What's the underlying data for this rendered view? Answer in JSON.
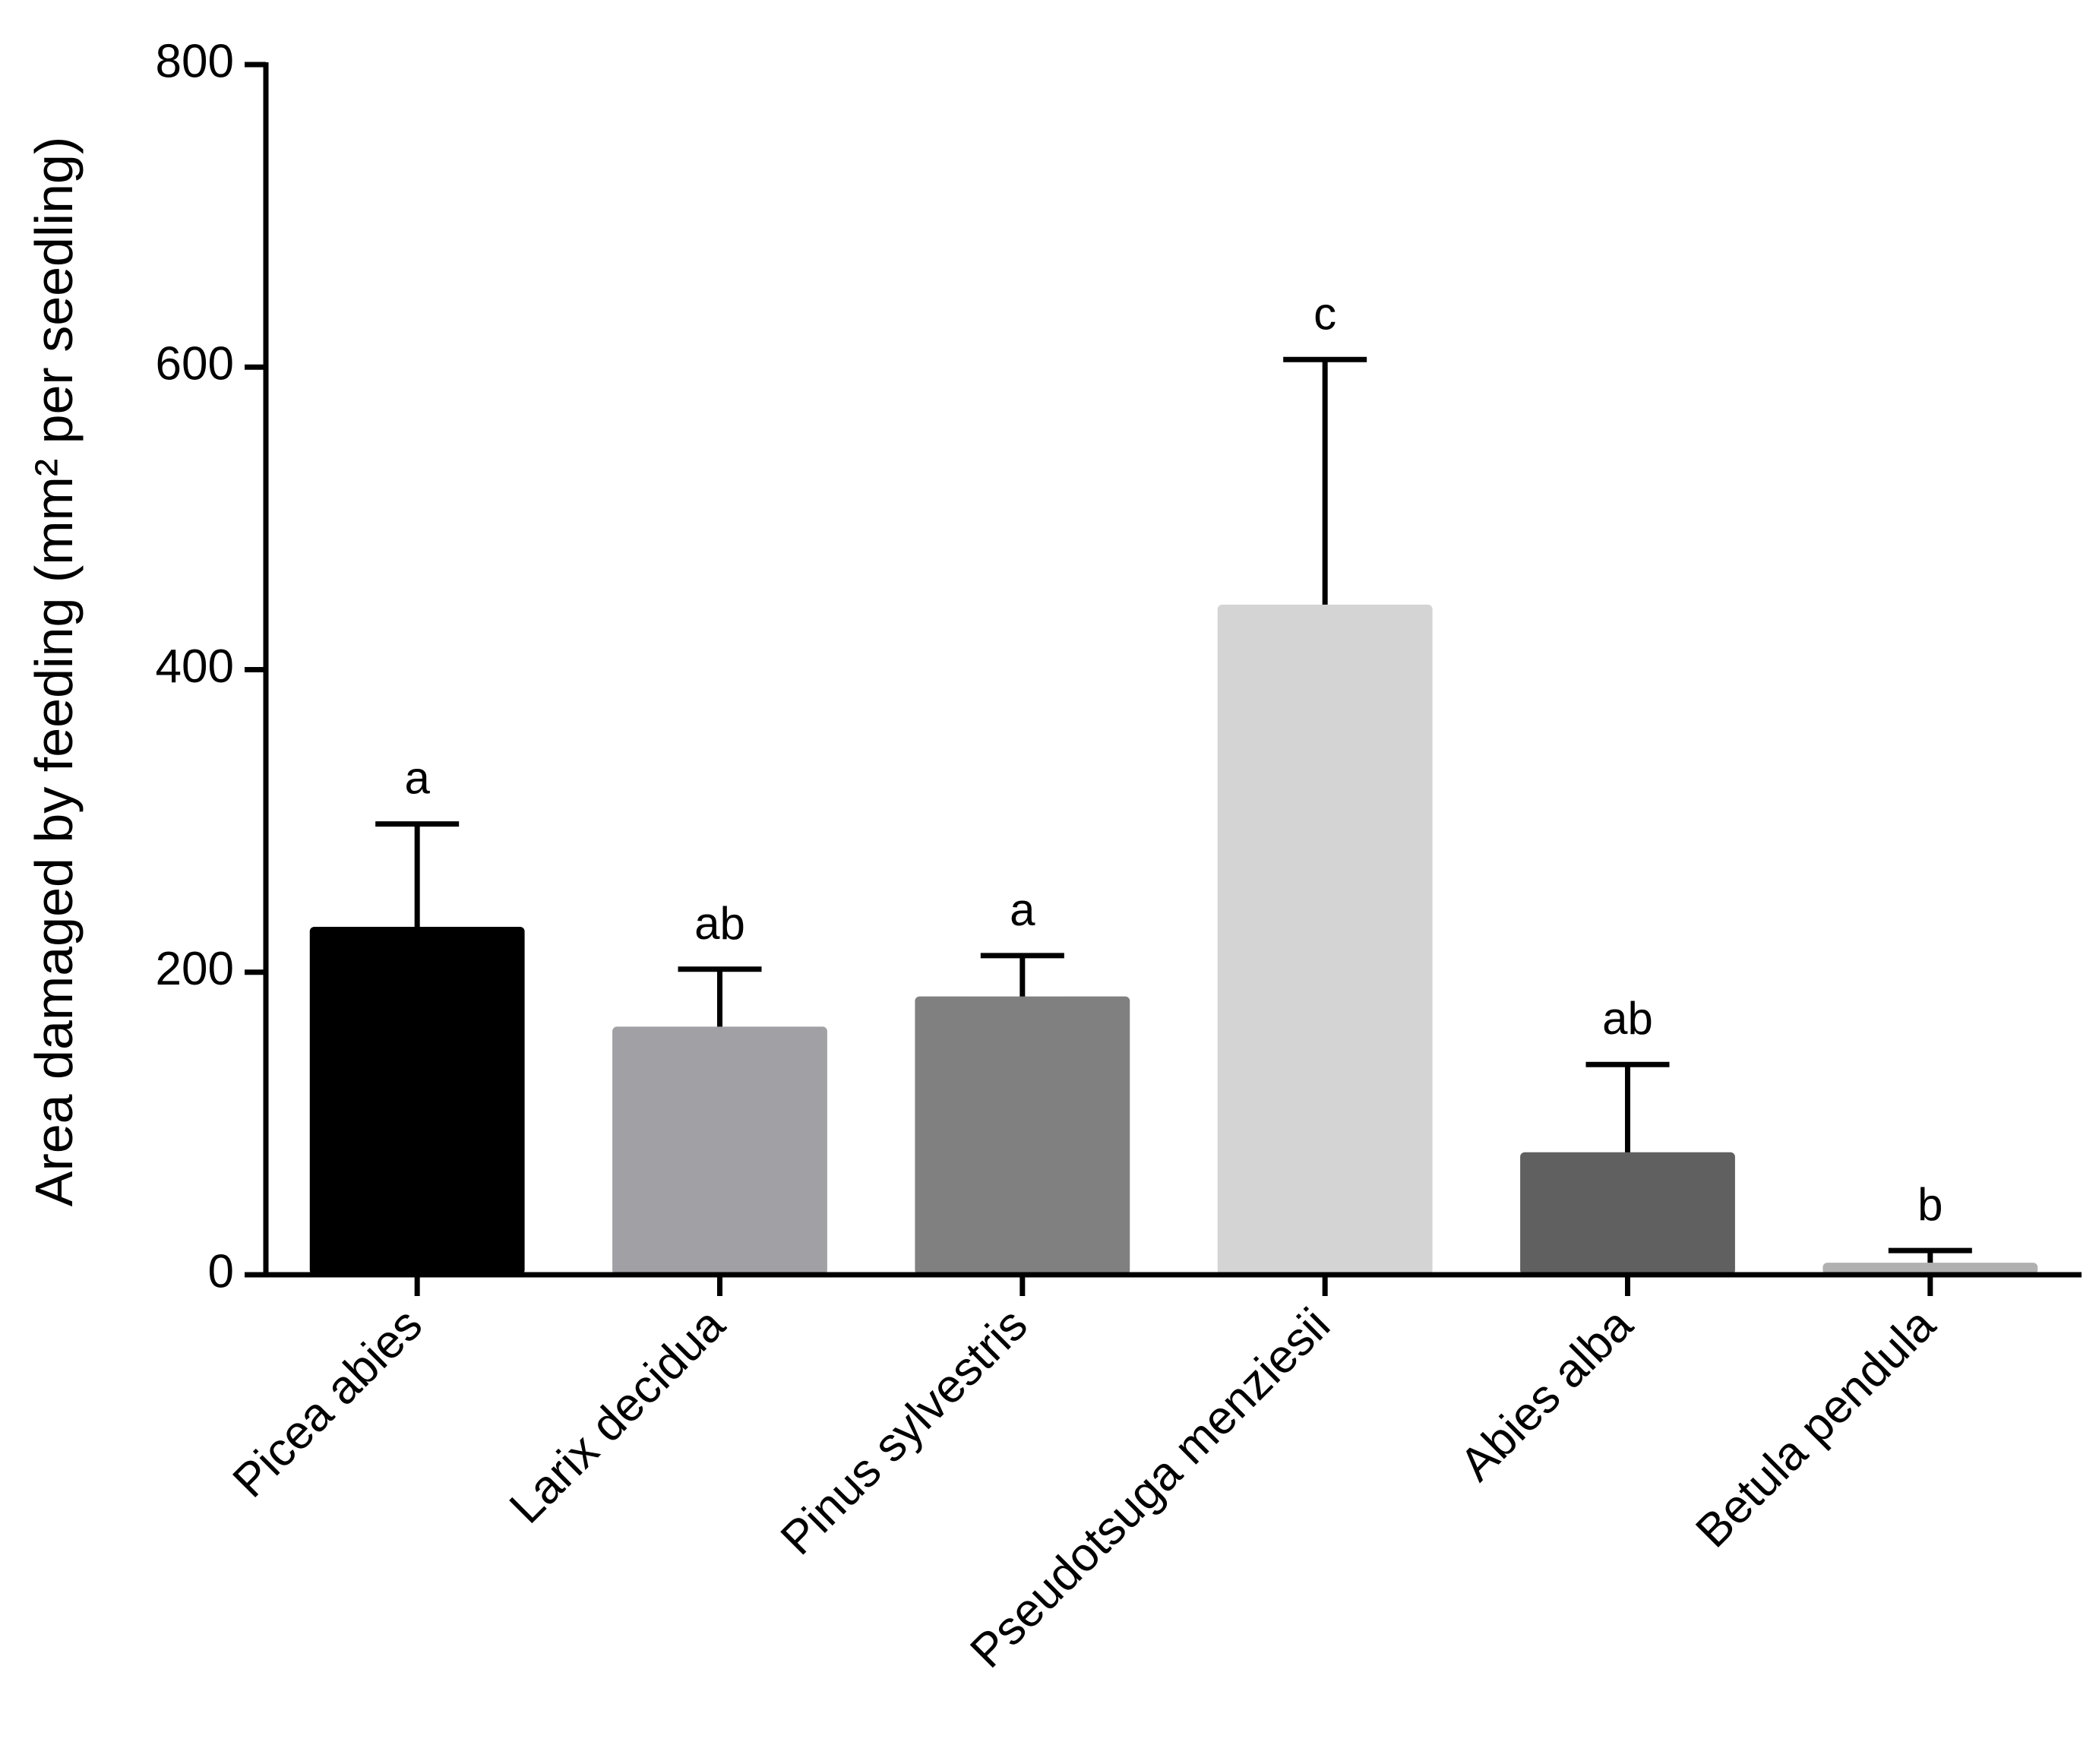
{
  "chart_data": {
    "type": "bar",
    "y_label": "Area damaged by feeding (mm² per seedling)",
    "categories": [
      "Picea abies",
      "Larix decidua",
      "Pinus sylvestris",
      "Pseudotsuga menziesii",
      "Abies alba",
      "Betula pendula"
    ],
    "values": [
      230,
      164,
      184,
      443,
      81,
      8
    ],
    "errors": [
      68,
      38,
      27,
      162,
      58,
      8
    ],
    "annotations": [
      "a",
      "ab",
      "a",
      "c",
      "ab",
      "b"
    ],
    "colors": [
      "#000000",
      "#a0a0a5",
      "#808080",
      "#d4d4d4",
      "#606060",
      "#b0b0b0"
    ],
    "ylim": [
      0,
      800
    ],
    "yticks": [
      0,
      200,
      400,
      600,
      800
    ]
  }
}
